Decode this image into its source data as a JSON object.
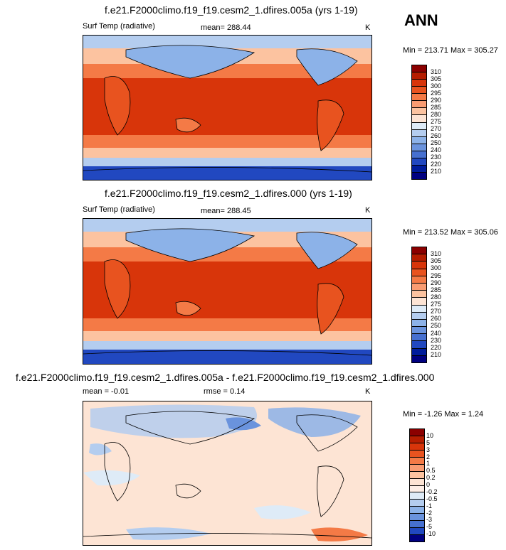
{
  "season": "ANN",
  "panels": [
    {
      "title": "f.e21.F2000climo.f19_f19.cesm2_1.dfires.005a (yrs 1-19)",
      "left_label": "Surf Temp (radiative)",
      "center_label": "mean= 288.44",
      "units": "K",
      "minmax": "Min = 213.71 Max = 305.27",
      "colorbar": {
        "levels": [
          "310",
          "305",
          "300",
          "295",
          "290",
          "285",
          "280",
          "275",
          "270",
          "260",
          "250",
          "240",
          "230",
          "220",
          "210"
        ],
        "colors": [
          "#8b0000",
          "#b51d00",
          "#d8350a",
          "#e8531f",
          "#f47a46",
          "#f99c72",
          "#fcc3a0",
          "#fde4d4",
          "#deebf7",
          "#b4cdef",
          "#8cb2e8",
          "#6a93dd",
          "#4670d0",
          "#2148c0",
          "#001c9b",
          "#000080"
        ]
      }
    },
    {
      "title": "f.e21.F2000climo.f19_f19.cesm2_1.dfires.000 (yrs 1-19)",
      "left_label": "Surf Temp (radiative)",
      "center_label": "mean= 288.45",
      "units": "K",
      "minmax": "Min = 213.52 Max = 305.06",
      "colorbar": {
        "levels": [
          "310",
          "305",
          "300",
          "295",
          "290",
          "285",
          "280",
          "275",
          "270",
          "260",
          "250",
          "240",
          "230",
          "220",
          "210"
        ],
        "colors": [
          "#8b0000",
          "#b51d00",
          "#d8350a",
          "#e8531f",
          "#f47a46",
          "#f99c72",
          "#fcc3a0",
          "#fde4d4",
          "#deebf7",
          "#b4cdef",
          "#8cb2e8",
          "#6a93dd",
          "#4670d0",
          "#2148c0",
          "#001c9b",
          "#000080"
        ]
      }
    },
    {
      "title": "f.e21.F2000climo.f19_f19.cesm2_1.dfires.005a - f.e21.F2000climo.f19_f19.cesm2_1.dfires.000",
      "left_label": "mean =  -0.01",
      "center_label": "rmse =   0.14",
      "units": "K",
      "minmax": "Min =  -1.26 Max =   1.24",
      "colorbar": {
        "levels": [
          "10",
          "5",
          "3",
          "2",
          "1",
          "0.5",
          "0.2",
          "0",
          "-0.2",
          "-0.5",
          "-1",
          "-2",
          "-3",
          "-5",
          "-10"
        ],
        "colors": [
          "#8b0000",
          "#b51d00",
          "#d8350a",
          "#e8531f",
          "#f47a46",
          "#f99c72",
          "#fcc3a0",
          "#fde4d4",
          "#fdeee6",
          "#deebf7",
          "#b4cdef",
          "#8cb2e8",
          "#6a93dd",
          "#4670d0",
          "#2148c0",
          "#000080"
        ]
      }
    }
  ]
}
